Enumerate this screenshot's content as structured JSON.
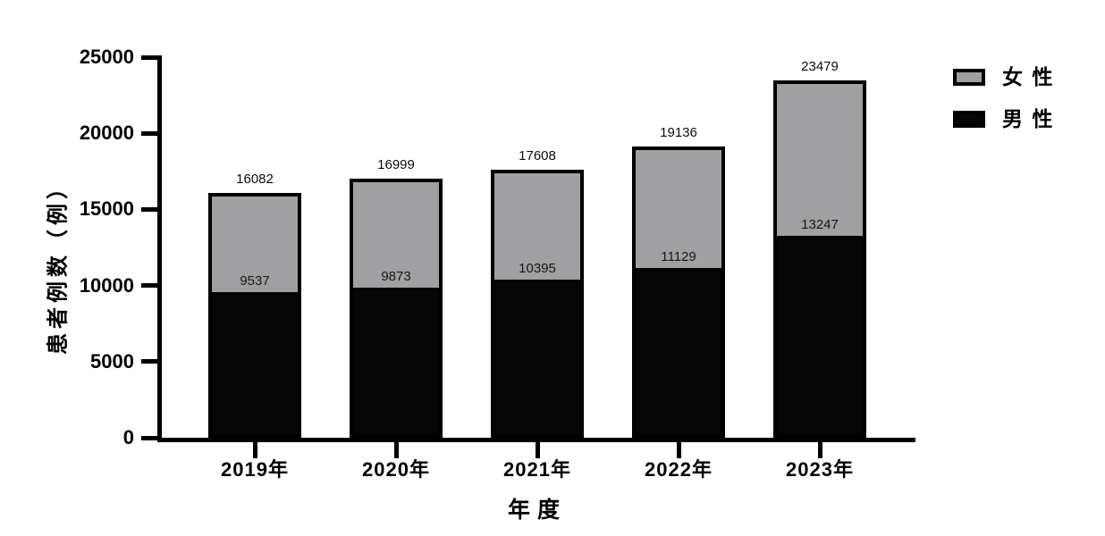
{
  "chart_data": {
    "type": "bar",
    "stacked": true,
    "title": "",
    "xlabel": "年度",
    "ylabel": "患者例数（例）",
    "categories": [
      "2019年",
      "2020年",
      "2021年",
      "2022年",
      "2023年"
    ],
    "series": [
      {
        "name": "男 性",
        "color": "#050505",
        "values": [
          9537,
          9873,
          10395,
          11129,
          13247
        ]
      },
      {
        "name": "女 性",
        "color": "#a0a0a2",
        "values": [
          6545,
          7126,
          7213,
          8007,
          10232
        ]
      }
    ],
    "totals": [
      16082,
      16999,
      17608,
      19136,
      23479
    ],
    "segment_labels_male": [
      "9537",
      "9873",
      "10395",
      "11129",
      "13247"
    ],
    "total_labels": [
      "16082",
      "16999",
      "17608",
      "19136",
      "23479"
    ],
    "ylim": [
      0,
      25000
    ],
    "yticks": [
      0,
      5000,
      10000,
      15000,
      20000,
      25000
    ],
    "ytick_labels": [
      "0",
      "5000",
      "10000",
      "15000",
      "20000",
      "25000"
    ],
    "grid": false,
    "legend_position": "top-right"
  },
  "legend": {
    "items": [
      {
        "label": "女 性",
        "fill": "#a0a0a2",
        "border": "#000000"
      },
      {
        "label": "男 性",
        "fill": "#050505",
        "border": "#000000"
      }
    ]
  },
  "colors": {
    "axis": "#000000",
    "background": "#ffffff",
    "bar_border": "#000000",
    "female_fill": "#a0a0a2",
    "male_fill": "#050505"
  }
}
